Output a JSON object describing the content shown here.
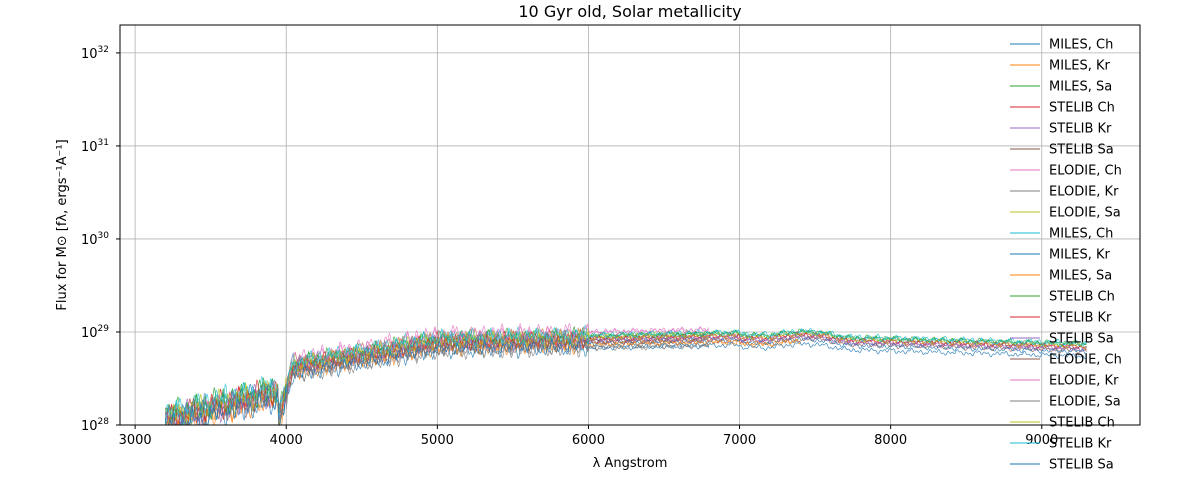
{
  "chart_data": {
    "type": "line",
    "title": "10 Gyr old, Solar metallicity",
    "xlabel": "λ Angstrom",
    "ylabel": "Flux for M⊙ [fλ, ergs⁻¹A⁻¹]",
    "xlim": [
      2900,
      9650
    ],
    "ylim_log10": [
      28,
      32.3
    ],
    "y_scale": "log",
    "grid": true,
    "legend_position": "right",
    "x_ticks": [
      3000,
      4000,
      5000,
      6000,
      7000,
      8000,
      9000
    ],
    "x_tick_labels": [
      "3000",
      "4000",
      "5000",
      "6000",
      "7000",
      "8000",
      "9000"
    ],
    "y_tick_exponents": [
      28,
      29,
      30,
      31,
      32
    ],
    "y_tick_base": "10",
    "y_tick_labels": [
      "28",
      "29",
      "30",
      "31",
      "32"
    ],
    "series": [
      {
        "name": "MILES, Ch",
        "color": "#1f77b4",
        "x_range": [
          3200,
          6800
        ],
        "level": 28.9
      },
      {
        "name": "MILES, Kr",
        "color": "#ff7f0e",
        "x_range": [
          3200,
          7410
        ],
        "level": 28.83
      },
      {
        "name": "MILES, Sa",
        "color": "#2ca02c",
        "x_range": [
          3200,
          9300
        ],
        "level": 28.93
      },
      {
        "name": "STELIB Ch",
        "color": "#d62728",
        "x_range": [
          3200,
          9300
        ],
        "level": 28.9
      },
      {
        "name": "STELIB Kr",
        "color": "#9467bd",
        "x_range": [
          3200,
          9300
        ],
        "level": 28.88
      },
      {
        "name": "STELIB Sa",
        "color": "#8c564b",
        "x_range": [
          3200,
          9300
        ],
        "level": 28.86
      },
      {
        "name": "ELODIE, Ch",
        "color": "#e377c2",
        "x_range": [
          4000,
          6800
        ],
        "level": 28.97
      },
      {
        "name": "ELODIE, Kr",
        "color": "#7f7f7f",
        "x_range": [
          4000,
          6800
        ],
        "level": 28.8
      },
      {
        "name": "ELODIE, Sa",
        "color": "#bcbd22",
        "x_range": [
          4000,
          6800
        ],
        "level": 28.92
      },
      {
        "name": "MILES, Ch",
        "color": "#17becf",
        "x_range": [
          3200,
          9300
        ],
        "level": 28.94
      },
      {
        "name": "MILES, Kr",
        "color": "#1f77b4",
        "x_range": [
          3200,
          9300
        ],
        "level": 28.85
      },
      {
        "name": "MILES, Sa",
        "color": "#ff7f0e",
        "x_range": [
          3200,
          7410
        ],
        "level": 28.84
      },
      {
        "name": "STELIB Ch",
        "color": "#2ca02c",
        "x_range": [
          3200,
          9300
        ],
        "level": 28.93
      },
      {
        "name": "STELIB Kr",
        "color": "#d62728",
        "x_range": [
          3200,
          9300
        ],
        "level": 28.9
      },
      {
        "name": "STELIB Sa",
        "color": "#9467bd",
        "x_range": [
          3200,
          9300
        ],
        "level": 28.88
      },
      {
        "name": "ELODIE, Ch",
        "color": "#8c564b",
        "x_range": [
          4000,
          6800
        ],
        "level": 28.86
      },
      {
        "name": "ELODIE, Kr",
        "color": "#e377c2",
        "x_range": [
          4000,
          6800
        ],
        "level": 28.97
      },
      {
        "name": "ELODIE, Sa",
        "color": "#7f7f7f",
        "x_range": [
          4000,
          6800
        ],
        "level": 28.8
      },
      {
        "name": "STELIB Ch",
        "color": "#bcbd22",
        "x_range": [
          3200,
          9300
        ],
        "level": 28.91
      },
      {
        "name": "STELIB Kr",
        "color": "#17becf",
        "x_range": [
          3200,
          9300
        ],
        "level": 28.93
      },
      {
        "name": "STELIB Sa",
        "color": "#1f77b4",
        "x_range": [
          3200,
          9300
        ],
        "level": 28.8
      }
    ]
  }
}
